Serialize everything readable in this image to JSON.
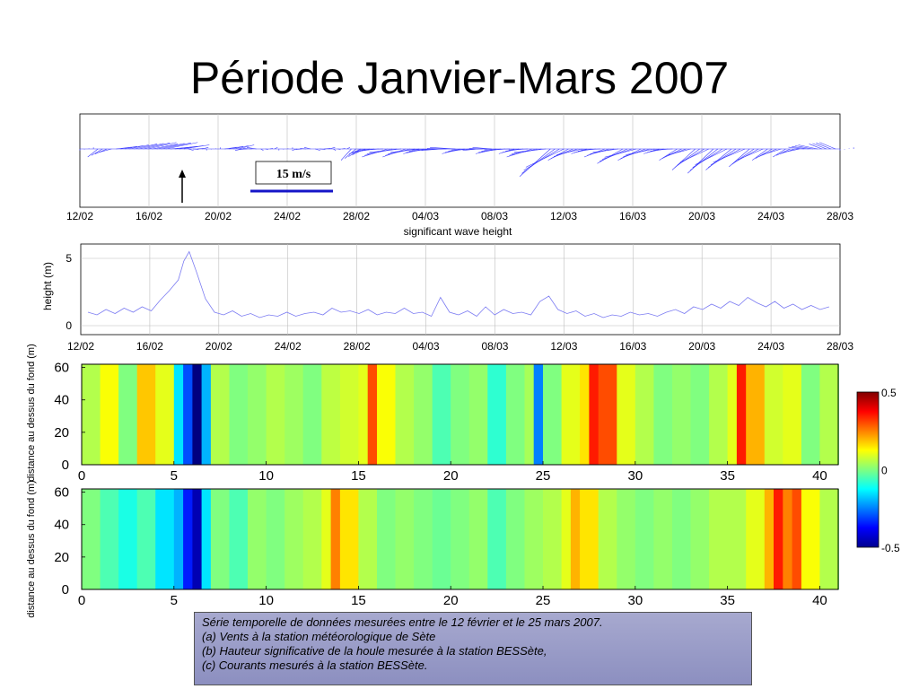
{
  "slide": {
    "title": "Période Janvier-Mars 2007"
  },
  "wind_panel": {
    "scale_label": "15 m/s",
    "date_labels": [
      "12/02",
      "16/02",
      "20/02",
      "24/02",
      "28/02",
      "04/03",
      "08/03",
      "12/03",
      "16/03",
      "20/03",
      "24/03",
      "28/03"
    ]
  },
  "wave_panel": {
    "title": "significant wave height",
    "ylabel": "height  (m)",
    "date_labels": [
      "12/02",
      "16/02",
      "20/02",
      "24/02",
      "28/02",
      "04/03",
      "08/03",
      "12/03",
      "16/03",
      "20/03",
      "24/03",
      "28/03"
    ]
  },
  "current_panels": {
    "ylabel": "distance au dessus du fond (m)",
    "x_ticks": [
      "0",
      "5",
      "10",
      "15",
      "20",
      "25",
      "30",
      "35",
      "40"
    ],
    "y_ticks": [
      "0",
      "20",
      "40",
      "60"
    ],
    "colorbar_ticks": [
      "0.5",
      "0",
      "-0.5"
    ]
  },
  "caption": {
    "line1": "Série temporelle de données mesurées entre le 12 février et le 25 mars 2007.",
    "line2": "(a)  Vents à la station météorologique de Sète",
    "line3": "(b)   Hauteur significative de la houle mesurée à la station BESSète,",
    "line4": "(c) Courants mesurés à la station BESSète."
  },
  "chart_data": [
    {
      "type": "line",
      "subtype": "wind-vector-stickplot",
      "xlabel": "",
      "ylabel": "",
      "x_tick_labels": [
        "12/02",
        "16/02",
        "20/02",
        "24/02",
        "28/02",
        "04/03",
        "08/03",
        "12/03",
        "16/03",
        "20/03",
        "24/03",
        "28/03"
      ],
      "scale_label": "15 m/s",
      "series": [
        {
          "day": [
            0,
            1,
            2,
            3,
            4,
            5,
            6,
            7,
            8,
            9,
            10,
            11,
            12,
            13,
            14,
            15,
            16,
            17,
            18,
            19,
            20,
            21,
            22,
            23,
            24,
            25,
            26,
            27,
            28,
            29,
            30,
            31,
            32,
            33,
            34,
            35,
            36,
            37,
            38,
            39,
            40,
            41,
            42
          ],
          "u_ms": [
            0,
            -4,
            6,
            9,
            10,
            8,
            2,
            0,
            5,
            -3,
            1,
            0,
            -2,
            2,
            1,
            -4,
            -8,
            -10,
            -9,
            -8,
            -8,
            -7,
            -6,
            -8,
            -6,
            -10,
            -12,
            -8,
            -6,
            -8,
            -10,
            -9,
            -6,
            -7,
            -9,
            -10,
            -10,
            -8,
            -6,
            -5,
            -6,
            -5,
            0
          ],
          "v_ms": [
            0,
            -2,
            1,
            2,
            2,
            1,
            0,
            0,
            1,
            0,
            0,
            0,
            0,
            0,
            0,
            -3,
            -1,
            -2,
            -2,
            -1,
            0,
            -1,
            0,
            -1,
            -1,
            -2,
            -8,
            -3,
            -1,
            -2,
            -4,
            -3,
            -1,
            -3,
            -6,
            -7,
            -6,
            -5,
            -3,
            -2,
            1,
            2,
            0
          ]
        }
      ]
    },
    {
      "type": "line",
      "title": "significant wave height",
      "xlabel": "",
      "ylabel": "height  (m)",
      "ylim": [
        0,
        6
      ],
      "x_tick_labels": [
        "12/02",
        "16/02",
        "20/02",
        "24/02",
        "28/02",
        "04/03",
        "08/03",
        "12/03",
        "16/03",
        "20/03",
        "24/03",
        "28/03"
      ],
      "y_ticks": [
        0,
        5
      ],
      "series": [
        {
          "name": "",
          "day": [
            0,
            0.5,
            1,
            1.5,
            2,
            2.5,
            3,
            3.5,
            4,
            4.5,
            5,
            5.3,
            5.6,
            6,
            6.5,
            7,
            7.5,
            8,
            8.5,
            9,
            9.5,
            10,
            10.5,
            11,
            11.5,
            12,
            12.5,
            13,
            13.5,
            14,
            14.5,
            15,
            15.5,
            16,
            16.5,
            17,
            17.5,
            18,
            18.5,
            19,
            19.5,
            20,
            20.5,
            21,
            21.5,
            22,
            22.5,
            23,
            23.5,
            24,
            24.5,
            25,
            25.5,
            26,
            26.5,
            27,
            27.5,
            28,
            28.5,
            29,
            29.5,
            30,
            30.5,
            31,
            31.5,
            32,
            32.5,
            33,
            33.5,
            34,
            34.5,
            35,
            35.5,
            36,
            36.5,
            37,
            37.5,
            38,
            38.5,
            39,
            39.5,
            40,
            40.5,
            41
          ],
          "value": [
            1.0,
            0.8,
            1.2,
            0.9,
            1.3,
            1.0,
            1.4,
            1.1,
            1.9,
            2.6,
            3.4,
            4.8,
            5.5,
            4.0,
            2.0,
            1.0,
            0.8,
            1.1,
            0.7,
            0.9,
            0.6,
            0.8,
            0.7,
            1.0,
            0.7,
            0.9,
            1.0,
            0.8,
            1.3,
            1.0,
            1.1,
            0.9,
            1.2,
            0.8,
            1.0,
            0.9,
            1.3,
            0.9,
            1.0,
            0.7,
            2.1,
            1.0,
            0.8,
            1.1,
            0.7,
            1.4,
            0.8,
            1.2,
            0.9,
            1.0,
            0.8,
            1.8,
            2.2,
            1.2,
            0.9,
            1.1,
            0.7,
            0.9,
            0.6,
            0.8,
            0.7,
            1.0,
            0.8,
            0.9,
            0.7,
            1.0,
            1.2,
            0.9,
            1.4,
            1.2,
            1.6,
            1.3,
            1.8,
            1.5,
            2.1,
            1.7,
            1.4,
            1.8,
            1.3,
            1.6,
            1.2,
            1.5,
            1.2,
            1.4
          ]
        }
      ]
    },
    {
      "type": "heatmap",
      "xlabel": "",
      "ylabel": "distance au dessus du fond (m)",
      "xlim": [
        0,
        41
      ],
      "ylim": [
        0,
        62
      ],
      "x_ticks": [
        0,
        5,
        10,
        15,
        20,
        25,
        30,
        35,
        40
      ],
      "y_ticks": [
        0,
        20,
        40,
        60
      ],
      "colorbar": {
        "min": -0.5,
        "max": 0.5,
        "ticks": [
          0.5,
          0,
          -0.5
        ]
      },
      "day": [
        0,
        1,
        2,
        3,
        4,
        5,
        5.5,
        6,
        6.5,
        7,
        8,
        9,
        10,
        11,
        12,
        13,
        14,
        15,
        15.5,
        16,
        17,
        18,
        19,
        20,
        21,
        22,
        23,
        24,
        24.5,
        25,
        26,
        27,
        27.5,
        28,
        29,
        30,
        31,
        32,
        33,
        34,
        35,
        35.5,
        36,
        37,
        38,
        39,
        40,
        41
      ],
      "depth_mean_value": [
        0.05,
        0.12,
        0.0,
        0.18,
        0.1,
        -0.15,
        -0.3,
        -0.6,
        -0.2,
        0.05,
        0.0,
        0.02,
        0.05,
        0.03,
        0.0,
        0.06,
        0.08,
        0.1,
        0.3,
        0.12,
        0.05,
        0.02,
        -0.05,
        0.0,
        0.02,
        -0.08,
        0.0,
        0.04,
        -0.25,
        0.0,
        0.1,
        0.15,
        0.35,
        0.3,
        0.1,
        0.05,
        0.0,
        0.02,
        0.0,
        0.05,
        0.1,
        0.35,
        0.2,
        0.08,
        0.1,
        0.0,
        0.05,
        0.0
      ]
    },
    {
      "type": "heatmap",
      "xlabel": "",
      "ylabel": "distance au dessus du fond (m)",
      "xlim": [
        0,
        41
      ],
      "ylim": [
        0,
        62
      ],
      "x_ticks": [
        0,
        5,
        10,
        15,
        20,
        25,
        30,
        35,
        40
      ],
      "y_ticks": [
        0,
        20,
        40,
        60
      ],
      "colorbar": {
        "min": -0.5,
        "max": 0.5,
        "ticks": [
          0.5,
          0,
          -0.5
        ]
      },
      "day": [
        0,
        1,
        2,
        3,
        4,
        5,
        5.5,
        6,
        6.5,
        7,
        8,
        9,
        10,
        11,
        12,
        13,
        13.5,
        14,
        15,
        16,
        17,
        18,
        19,
        20,
        21,
        22,
        23,
        24,
        25,
        26,
        26.5,
        27,
        28,
        29,
        30,
        31,
        32,
        33,
        34,
        35,
        36,
        37,
        37.5,
        38,
        38.5,
        39,
        40,
        41
      ],
      "depth_mean_value": [
        0.0,
        -0.05,
        -0.1,
        -0.05,
        -0.15,
        -0.2,
        -0.35,
        -0.45,
        -0.15,
        0.0,
        -0.05,
        0.02,
        0.0,
        0.03,
        0.05,
        0.1,
        0.25,
        0.15,
        0.05,
        0.0,
        0.02,
        0.0,
        -0.02,
        0.0,
        0.02,
        -0.05,
        0.0,
        0.03,
        0.05,
        0.1,
        0.2,
        0.15,
        0.05,
        0.02,
        0.0,
        0.02,
        0.0,
        0.02,
        0.05,
        0.05,
        0.1,
        0.2,
        0.35,
        0.25,
        0.3,
        0.12,
        0.05,
        0.0
      ]
    }
  ]
}
